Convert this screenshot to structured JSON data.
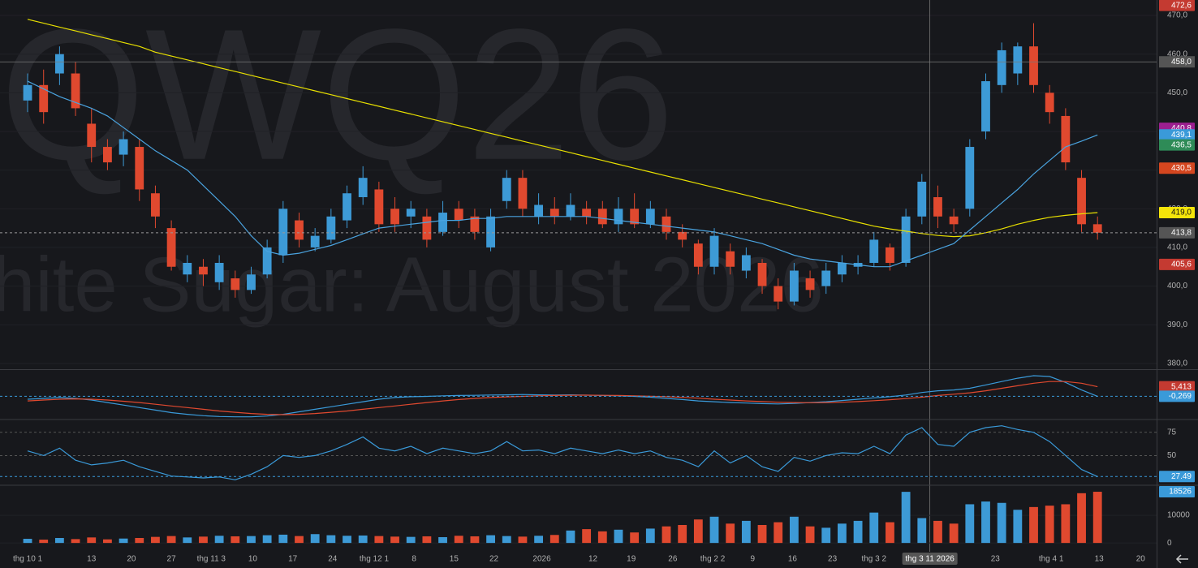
{
  "chart_data": [
    {
      "type": "candlestick",
      "watermark": {
        "title": "QWQ26",
        "subtitle": "hite Sugar: August 2026"
      },
      "up_color": "#3d9ad6",
      "down_color": "#e0492f",
      "candles": {
        "open": [
          448,
          452,
          455,
          455,
          442,
          436,
          434,
          436,
          424,
          415,
          403,
          405,
          401,
          402,
          399,
          403,
          408,
          417,
          410,
          412,
          417,
          423,
          425,
          420,
          418,
          418,
          414,
          420,
          418,
          410,
          422,
          428,
          418,
          420,
          418,
          420,
          420,
          416,
          420,
          416,
          418,
          414,
          411,
          405,
          409,
          404,
          406,
          400,
          396,
          402,
          400,
          403,
          405,
          406,
          410,
          406,
          418,
          423,
          418,
          420,
          440,
          452,
          455,
          462,
          450,
          444,
          428,
          416
        ],
        "high": [
          455,
          456,
          462,
          458,
          446,
          438,
          440,
          438,
          426,
          417,
          408,
          407,
          408,
          404,
          405,
          412,
          422,
          419,
          415,
          420,
          426,
          431,
          427,
          423,
          422,
          420,
          422,
          422,
          420,
          420,
          430,
          430,
          424,
          423,
          424,
          422,
          422,
          423,
          424,
          422,
          420,
          416,
          412,
          415,
          411,
          410,
          407,
          402,
          406,
          404,
          406,
          408,
          408,
          414,
          411,
          420,
          429,
          426,
          420,
          438,
          455,
          463,
          463,
          468,
          452,
          446,
          430,
          418
        ],
        "low": [
          445,
          442,
          452,
          444,
          432,
          430,
          431,
          422,
          415,
          404,
          401,
          400,
          399,
          397,
          398,
          402,
          406,
          410,
          409,
          411,
          415,
          421,
          414,
          414,
          415,
          410,
          413,
          415,
          412,
          409,
          420,
          418,
          416,
          416,
          417,
          416,
          415,
          414,
          415,
          415,
          412,
          410,
          403,
          403,
          403,
          402,
          398,
          394,
          395,
          397,
          398,
          401,
          403,
          405,
          404,
          405,
          416,
          415,
          414,
          418,
          438,
          450,
          452,
          450,
          442,
          430,
          414,
          412
        ],
        "close": [
          452,
          445,
          460,
          446,
          436,
          432,
          438,
          425,
          418,
          405,
          406,
          403,
          406,
          399,
          403,
          410,
          420,
          412,
          413,
          418,
          424,
          428,
          416,
          416,
          420,
          412,
          419,
          417,
          414,
          418,
          428,
          420,
          421,
          418,
          421,
          418,
          416,
          420,
          416,
          420,
          414,
          412,
          405,
          413,
          405,
          408,
          400,
          396,
          404,
          399,
          404,
          406,
          406,
          412,
          406,
          418,
          427,
          418,
          416,
          436,
          453,
          461,
          462,
          452,
          445,
          432,
          416,
          413.8
        ]
      },
      "series": [
        {
          "color": "#e8e000",
          "values": [
            469,
            468,
            467,
            466,
            465,
            464,
            463,
            462,
            460.5,
            459.5,
            458.5,
            457.5,
            456.5,
            455.5,
            454.5,
            453.5,
            452.5,
            451.5,
            450.5,
            449.5,
            448.5,
            447.5,
            446.5,
            445.5,
            444.5,
            443.5,
            442.5,
            441.5,
            440.5,
            439.5,
            438.5,
            437.5,
            436.5,
            435.5,
            434.5,
            433.5,
            432.5,
            431.5,
            430.5,
            429.5,
            428.5,
            427.5,
            426.5,
            425.5,
            424.5,
            423.5,
            422.5,
            421.5,
            420.5,
            419.5,
            418.5,
            417.5,
            416.5,
            415.5,
            414.8,
            414.2,
            413.6,
            413.1,
            412.8,
            413,
            413.8,
            414.8,
            416,
            417,
            417.8,
            418.3,
            418.7,
            419
          ]
        },
        {
          "color": "#4aa3df",
          "values": [
            453,
            451,
            449,
            447.5,
            446,
            444,
            441,
            438,
            435,
            432.5,
            430,
            426,
            422,
            418,
            413,
            409,
            408,
            408.5,
            409.5,
            410.5,
            412,
            413.5,
            415,
            415.5,
            416,
            416.5,
            417,
            417,
            417.5,
            417.5,
            418,
            418,
            418,
            418,
            418,
            418,
            417.5,
            417,
            416.5,
            416,
            415.5,
            415,
            414.5,
            414,
            413,
            412,
            411,
            409.5,
            408,
            407,
            406.5,
            406,
            405.5,
            405,
            405,
            406.5,
            408,
            409.5,
            411,
            414.5,
            418,
            421.5,
            425,
            429,
            432.5,
            436,
            437.5,
            439.1
          ]
        }
      ],
      "xlim": [
        -1.73,
        70.7
      ],
      "ylim": [
        378.5,
        474
      ],
      "yticks": [
        {
          "value": 380,
          "label": "380,0"
        },
        {
          "value": 390,
          "label": "390,0"
        },
        {
          "value": 400,
          "label": "400,0"
        },
        {
          "value": 410,
          "label": "410,0"
        },
        {
          "value": 420,
          "label": "420,0"
        },
        {
          "value": 430,
          "label": "430,0"
        },
        {
          "value": 440,
          "label": "440,0"
        },
        {
          "value": 450,
          "label": "450,0"
        },
        {
          "value": 460,
          "label": "460,0"
        },
        {
          "value": 470,
          "label": "470,0"
        }
      ],
      "price_tags": [
        {
          "value": 472.6,
          "label": "472,6",
          "color": "#c43a31"
        },
        {
          "value": 440.8,
          "label": "440,8",
          "color": "#9c1f8f"
        },
        {
          "value": 439.1,
          "label": "439,1",
          "color": "#3a9ad9"
        },
        {
          "value": 436.5,
          "label": "436,5",
          "color": "#2e8b57"
        },
        {
          "value": 430.5,
          "label": "430,5",
          "color": "#d4461f"
        },
        {
          "value": 419,
          "label": "419,0",
          "color": "#f5e50a"
        },
        {
          "value": 413.8,
          "label": "413,8",
          "color": "#555555",
          "dashed": true
        },
        {
          "value": 405.6,
          "label": "405,6",
          "color": "#c43a31"
        }
      ],
      "crosshair": {
        "x": {
          "value": 56.5,
          "label": "thg 3 11 2026"
        },
        "y": {
          "value": 458,
          "label": "458,0"
        }
      }
    },
    {
      "type": "line",
      "series": [
        {
          "color": "#3a9ad9",
          "values": [
            -2,
            -1.5,
            -1,
            -1.5,
            -2.5,
            -4,
            -5.5,
            -7,
            -8.5,
            -10,
            -11,
            -11.8,
            -12.3,
            -12.5,
            -12.5,
            -12,
            -11,
            -9.5,
            -8,
            -6.5,
            -5,
            -3.5,
            -2,
            -1,
            -0.5,
            -0.3,
            0,
            0.2,
            0.3,
            0.5,
            0.6,
            0.8,
            0.6,
            0.5,
            0.6,
            0.4,
            0.2,
            0,
            -0.3,
            -0.8,
            -1.5,
            -2.2,
            -3,
            -3.5,
            -4,
            -4.3,
            -4.6,
            -4.8,
            -4.5,
            -4,
            -3.5,
            -2.8,
            -2,
            -1.2,
            -0.5,
            0.5,
            2,
            3,
            3.5,
            4.5,
            6.5,
            8.5,
            10.5,
            12,
            11.5,
            8,
            3.5,
            -0.269
          ]
        },
        {
          "color": "#e0492f",
          "values": [
            -3,
            -2.5,
            -2,
            -1.8,
            -2,
            -2.5,
            -3.2,
            -4,
            -5,
            -6,
            -7,
            -8,
            -9,
            -9.8,
            -10.5,
            -11,
            -11.2,
            -11,
            -10.5,
            -9.8,
            -9,
            -8,
            -7,
            -6,
            -5,
            -4,
            -3,
            -2.2,
            -1.5,
            -1,
            -0.6,
            -0.3,
            0,
            0.2,
            0.3,
            0.4,
            0.3,
            0.2,
            0,
            -0.2,
            -0.5,
            -0.9,
            -1.4,
            -2,
            -2.5,
            -3,
            -3.4,
            -3.8,
            -4,
            -4.1,
            -4,
            -3.8,
            -3.4,
            -2.9,
            -2.3,
            -1.6,
            -0.8,
            0.2,
            1,
            1.8,
            3,
            4.5,
            6,
            7.5,
            8.5,
            8.5,
            7.5,
            5.413
          ]
        }
      ],
      "xlim": [
        -1.73,
        70.7
      ],
      "ylim": [
        -13.6,
        14.9
      ],
      "yticks": [],
      "price_tags": [
        {
          "value": 5.413,
          "label": "5,413",
          "color": "#c43a31"
        },
        {
          "value": -0.269,
          "label": "-0,269",
          "color": "#3a9ad9",
          "dashed": true
        }
      ]
    },
    {
      "type": "line",
      "series": [
        {
          "color": "#3a9ad9",
          "values": [
            55,
            50,
            58,
            45,
            40,
            42,
            45,
            38,
            33,
            28,
            27,
            26,
            27,
            24,
            30,
            38,
            50,
            48,
            50,
            55,
            62,
            70,
            58,
            55,
            60,
            52,
            58,
            55,
            52,
            55,
            65,
            55,
            56,
            52,
            58,
            55,
            52,
            56,
            52,
            55,
            48,
            45,
            38,
            55,
            42,
            50,
            38,
            33,
            48,
            44,
            50,
            53,
            52,
            60,
            52,
            72,
            80,
            62,
            60,
            75,
            80,
            82,
            78,
            75,
            65,
            50,
            35,
            27.49
          ]
        }
      ],
      "xlim": [
        -1.73,
        70.7
      ],
      "ylim": [
        19,
        87
      ],
      "yticks": [
        50,
        75
      ],
      "tick_lines_dashed": true,
      "price_tags": [
        {
          "value": 27.49,
          "color": "#3a9ad9",
          "dashed": true
        }
      ]
    },
    {
      "type": "bar",
      "values": [
        1500,
        1200,
        1800,
        1400,
        2000,
        1300,
        1600,
        1800,
        2200,
        2500,
        2000,
        2300,
        2600,
        2400,
        2500,
        2800,
        3000,
        2500,
        3200,
        2800,
        2600,
        2700,
        2500,
        2300,
        2200,
        2400,
        2100,
        2600,
        2400,
        2800,
        2500,
        2300,
        2600,
        2900,
        4500,
        5000,
        4200,
        4800,
        3800,
        5200,
        6000,
        6500,
        8500,
        9500,
        7000,
        8000,
        6500,
        7500,
        9500,
        6000,
        5500,
        7000,
        8000,
        11000,
        7500,
        18500,
        9000,
        8000,
        7000,
        14000,
        15000,
        14500,
        12000,
        13000,
        13500,
        14000,
        18000,
        18526
      ],
      "xlim": [
        -1.73,
        70.7
      ],
      "ylim": [
        -2600,
        20300
      ],
      "yticks": [
        0,
        10000
      ],
      "price_tags": [
        {
          "value": 18526,
          "color": "#3a9ad9"
        }
      ],
      "xticks": [
        {
          "value": 0,
          "label": "thg 10 1"
        },
        {
          "value": 4,
          "label": "13"
        },
        {
          "value": 6.5,
          "label": "20"
        },
        {
          "value": 9,
          "label": "27"
        },
        {
          "value": 11.5,
          "label": "thg 11 3"
        },
        {
          "value": 14.1,
          "label": "10"
        },
        {
          "value": 16.6,
          "label": "17"
        },
        {
          "value": 19.1,
          "label": "24"
        },
        {
          "value": 21.7,
          "label": "thg 12 1"
        },
        {
          "value": 24.2,
          "label": "8"
        },
        {
          "value": 26.7,
          "label": "15"
        },
        {
          "value": 29.2,
          "label": "22"
        },
        {
          "value": 32.2,
          "label": "2026"
        },
        {
          "value": 35.4,
          "label": "12"
        },
        {
          "value": 37.8,
          "label": "19"
        },
        {
          "value": 40.4,
          "label": "26"
        },
        {
          "value": 42.9,
          "label": "thg 2 2"
        },
        {
          "value": 45.4,
          "label": "9"
        },
        {
          "value": 47.9,
          "label": "16"
        },
        {
          "value": 50.4,
          "label": "23"
        },
        {
          "value": 53,
          "label": "thg 3 2"
        },
        {
          "value": 60.6,
          "label": "23"
        },
        {
          "value": 64.1,
          "label": "thg 4 1"
        },
        {
          "value": 67.1,
          "label": "13"
        },
        {
          "value": 69.7,
          "label": "20"
        }
      ]
    }
  ]
}
